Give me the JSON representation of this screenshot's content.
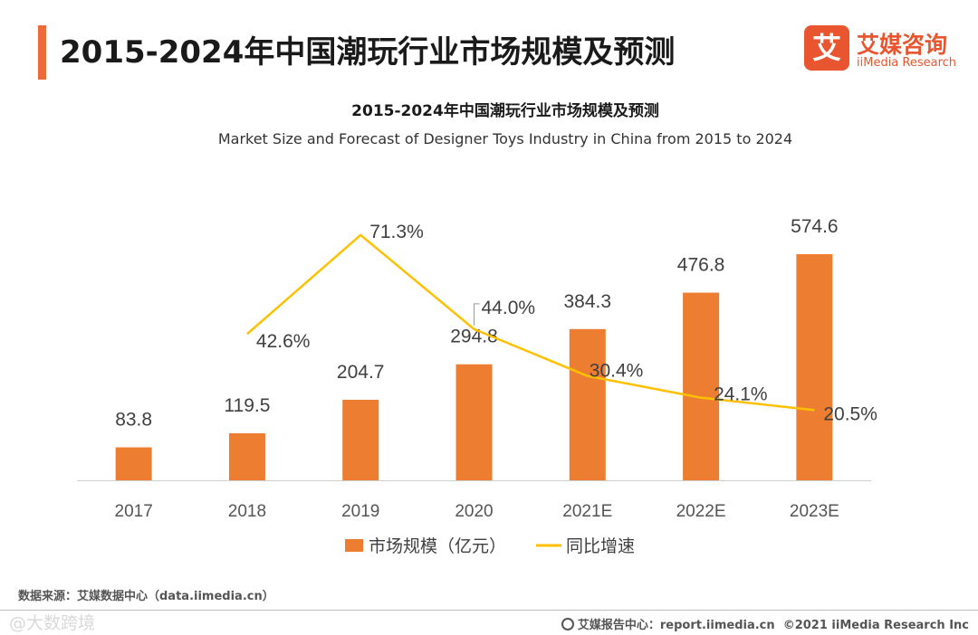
{
  "header": {
    "title": "2015-2024年中国潮玩行业市场规模及预测",
    "accent_color": "#ef6a3a"
  },
  "logo": {
    "mark": "艾",
    "name_cn": "艾媒咨询",
    "name_en": "iiMedia Research",
    "color": "#e8552f"
  },
  "chart_data": {
    "type": "bar",
    "title": "2015-2024年中国潮玩行业市场规模及预测",
    "subtitle": "Market Size and Forecast of Designer Toys Industry in China from 2015 to 2024",
    "categories": [
      "2017",
      "2018",
      "2019",
      "2020",
      "2021E",
      "2022E",
      "2023E"
    ],
    "series": [
      {
        "name": "市场规模（亿元）",
        "type": "bar",
        "color": "#ed7d31",
        "values": [
          83.8,
          119.5,
          204.7,
          294.8,
          384.3,
          476.8,
          574.6
        ],
        "labels": [
          "83.8",
          "119.5",
          "204.7",
          "294.8",
          "384.3",
          "476.8",
          "574.6"
        ]
      },
      {
        "name": "同比增速",
        "type": "line",
        "color": "#ffc000",
        "values": [
          null,
          42.6,
          71.3,
          44.0,
          30.4,
          24.1,
          20.5
        ],
        "labels": [
          null,
          "42.6%",
          "71.3%",
          "44.0%",
          "30.4%",
          "24.1%",
          "20.5%"
        ]
      }
    ],
    "legend_position": "bottom",
    "grid": false
  },
  "footer": {
    "source": "数据来源：艾媒数据中心（data.iimedia.cn）",
    "report_site": "艾媒报告中心：report.iimedia.cn",
    "copyright": "©2021  iiMedia Research  Inc",
    "watermark": "@大数跨境"
  }
}
